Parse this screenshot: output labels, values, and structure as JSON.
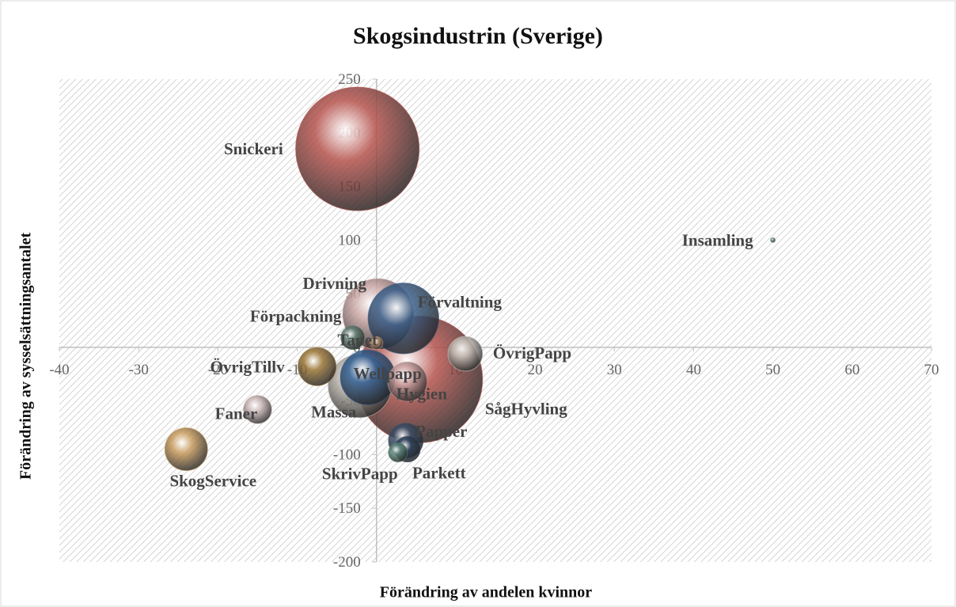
{
  "chart_data": {
    "type": "bubble",
    "title": "Skogsindustrin (Sverige)",
    "x_label": "Förändring av andelen kvinnor",
    "y_label": "Förändring av sysselsättningsantalet",
    "xlim": [
      -40,
      70
    ],
    "xticks": [
      -40,
      -30,
      -20,
      -10,
      0,
      10,
      20,
      30,
      40,
      50,
      60,
      70
    ],
    "ylim": [
      -200,
      250
    ],
    "yticks": [
      -200,
      -150,
      -100,
      -50,
      0,
      50,
      100,
      150,
      200,
      250
    ],
    "labels": [
      "Snickeri",
      "SågHyvling",
      "Drivning",
      "Förvaltning",
      "Massa",
      "Wellpapp",
      "Hygien",
      "ÖvrigTillv",
      "ÖvrigPapp",
      "SkogService",
      "Papper",
      "Faner",
      "Parkett",
      "Förpackning",
      "SkrivPapp",
      "Tapet",
      "Insamling"
    ],
    "x": [
      -2.4,
      5.4,
      0.2,
      3.4,
      -2.1,
      -1.1,
      3.9,
      -7.5,
      11.2,
      -24,
      3.7,
      -15,
      3.9,
      -3,
      2.7,
      0,
      50
    ],
    "y": [
      185,
      -30,
      31,
      27,
      -36,
      -28,
      -32,
      -18,
      -6,
      -95,
      -87,
      -58,
      -95,
      9,
      -98,
      4,
      100
    ],
    "sizes": [
      6100,
      6400,
      2000,
      2000,
      1600,
      1200,
      620,
      580,
      480,
      730,
      480,
      320,
      260,
      225,
      144,
      64,
      9
    ],
    "colors": [
      "#b5524c",
      "#b5524c",
      "#c9a5a3",
      "#3a5f8a",
      "#b9b3aa",
      "#2f5d92",
      "#c99f9f",
      "#9a7434",
      "#c9c5bd",
      "#c6995a",
      "#3a4e68",
      "#c9b4b4",
      "#2c3f57",
      "#5f7e72",
      "#5f8a7d",
      "#c9a07a",
      "#5f8a7d"
    ]
  }
}
